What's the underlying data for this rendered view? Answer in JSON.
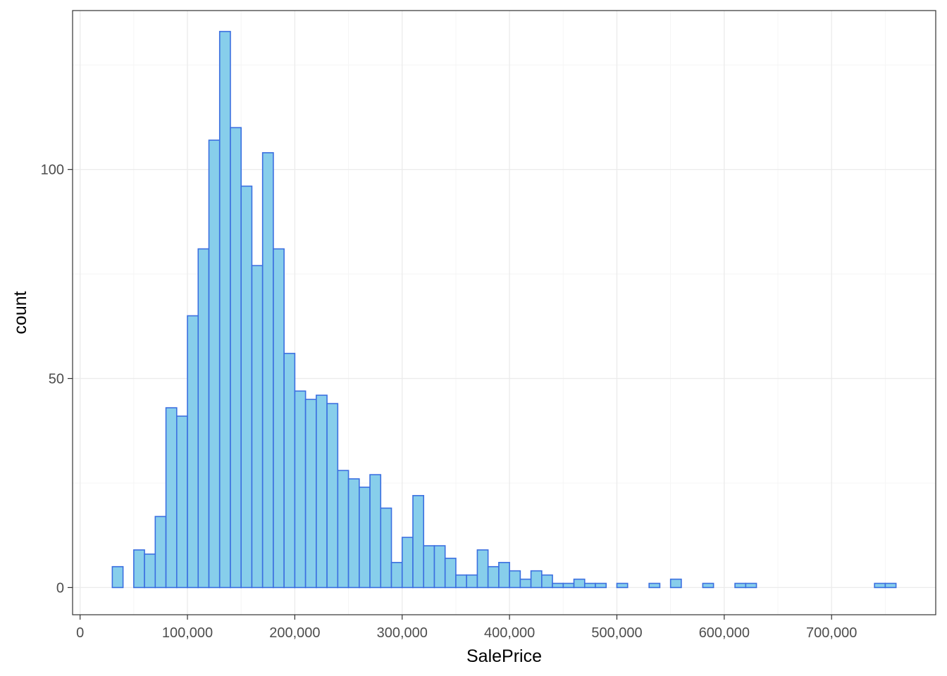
{
  "chart_data": {
    "type": "bar",
    "subtype": "histogram",
    "xlabel": "SalePrice",
    "ylabel": "count",
    "xlim": [
      -7000,
      797000
    ],
    "ylim": [
      -6.5,
      138
    ],
    "grid": true,
    "legend": "none",
    "bin_width": 10000,
    "first_bin_center": 35000,
    "values": [
      5,
      0,
      9,
      8,
      17,
      43,
      41,
      65,
      81,
      107,
      133,
      110,
      96,
      77,
      104,
      81,
      56,
      47,
      45,
      46,
      44,
      28,
      26,
      24,
      27,
      19,
      6,
      12,
      22,
      10,
      10,
      7,
      3,
      3,
      9,
      5,
      6,
      4,
      2,
      4,
      3,
      1,
      1,
      2,
      1,
      1,
      0,
      1,
      0,
      0,
      1,
      0,
      2,
      0,
      0,
      1,
      0,
      0,
      1,
      1,
      0,
      0,
      0,
      0,
      0,
      0,
      0,
      0,
      0,
      0,
      0,
      1,
      1
    ],
    "x_ticks": [
      {
        "value": 0,
        "label": "0"
      },
      {
        "value": 100000,
        "label": "100,000"
      },
      {
        "value": 200000,
        "label": "200,000"
      },
      {
        "value": 300000,
        "label": "300,000"
      },
      {
        "value": 400000,
        "label": "400,000"
      },
      {
        "value": 500000,
        "label": "500,000"
      },
      {
        "value": 600000,
        "label": "600,000"
      },
      {
        "value": 700000,
        "label": "700,000"
      }
    ],
    "y_ticks": [
      {
        "value": 0,
        "label": "0"
      },
      {
        "value": 50,
        "label": "50"
      },
      {
        "value": 100,
        "label": "100"
      }
    ],
    "colors": {
      "bar_fill": "#87CEEB",
      "bar_stroke": "#3B6FE0",
      "grid_major": "#EBEBEB",
      "grid_minor": "#F5F5F5",
      "panel_border": "#333333",
      "tick_label": "#4D4D4D"
    }
  }
}
